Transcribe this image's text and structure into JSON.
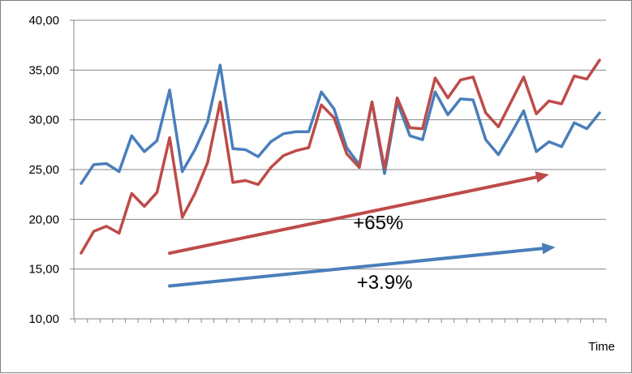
{
  "chart_data": {
    "type": "line",
    "title": "",
    "xlabel": "Time",
    "ylabel": "",
    "ylim": [
      10,
      40
    ],
    "yticks": [
      "10,00",
      "15,00",
      "20,00",
      "25,00",
      "30,00",
      "35,00",
      "40,00"
    ],
    "ytick_values": [
      10,
      15,
      20,
      25,
      30,
      35,
      40
    ],
    "grid": true,
    "x": [
      1,
      2,
      3,
      4,
      5,
      6,
      7,
      8,
      9,
      10,
      11,
      12,
      13,
      14,
      15,
      16,
      17,
      18,
      19,
      20,
      21,
      22,
      23,
      24,
      25,
      26,
      27,
      28,
      29,
      30,
      31,
      32,
      33,
      34,
      35,
      36,
      37,
      38,
      39,
      40,
      41,
      42
    ],
    "series": [
      {
        "color": "#4a7ebb",
        "values": [
          23.6,
          25.5,
          25.6,
          24.8,
          28.4,
          26.8,
          27.9,
          33.0,
          24.8,
          27.0,
          29.8,
          35.5,
          27.1,
          27.0,
          26.3,
          27.8,
          28.6,
          28.8,
          28.8,
          32.8,
          31.1,
          27.2,
          25.5,
          31.8,
          24.6,
          31.8,
          28.4,
          28.0,
          32.8,
          30.5,
          32.1,
          32.0,
          28.0,
          26.5,
          28.6,
          30.9,
          26.8,
          27.8,
          27.3,
          29.7,
          29.1,
          30.7
        ]
      },
      {
        "color": "#be4b48",
        "values": [
          16.6,
          18.8,
          19.3,
          18.6,
          22.6,
          21.3,
          22.7,
          28.2,
          20.2,
          22.6,
          25.7,
          31.8,
          23.7,
          23.9,
          23.5,
          25.2,
          26.4,
          26.9,
          27.2,
          31.5,
          30.2,
          26.6,
          25.2,
          31.8,
          25.1,
          32.2,
          29.2,
          29.1,
          34.2,
          32.2,
          34.0,
          34.3,
          30.7,
          29.3,
          31.8,
          34.3,
          30.6,
          31.9,
          31.6,
          34.4,
          34.1,
          36.0
        ]
      }
    ],
    "trend_arrows": [
      {
        "color": "#be4b48",
        "from": [
          8,
          16.6
        ],
        "to": [
          38,
          24.5
        ]
      },
      {
        "color": "#4a7ebb",
        "from": [
          8,
          13.3
        ],
        "to": [
          38.5,
          17.2
        ]
      }
    ],
    "annotations": [
      {
        "text": "+65%",
        "x": 24.5,
        "y": 19.0
      },
      {
        "text": "+3.9%",
        "x": 25.0,
        "y": 13.0
      }
    ]
  }
}
